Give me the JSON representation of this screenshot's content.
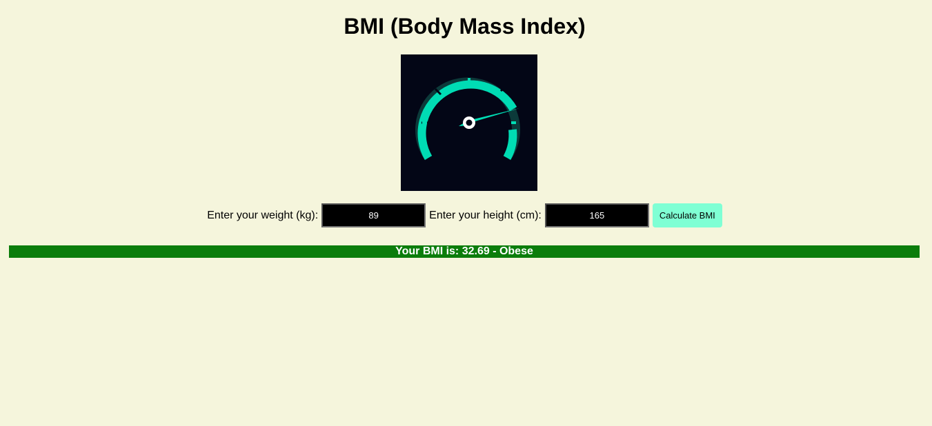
{
  "page": {
    "title": "BMI (Body Mass Index)"
  },
  "gauge": {
    "icon": "speedometer-icon",
    "background_color": "#030616",
    "accent_color": "#00dcb4",
    "track_color": "#0c3a3a"
  },
  "form": {
    "weight_label": "Enter your weight (kg):",
    "weight_value": "89",
    "height_label": "Enter your height (cm):",
    "height_value": "165",
    "calculate_label": "Calculate BMI"
  },
  "result": {
    "text": "Your BMI is: 32.69 - Obese",
    "color": "#0b7d0b"
  }
}
